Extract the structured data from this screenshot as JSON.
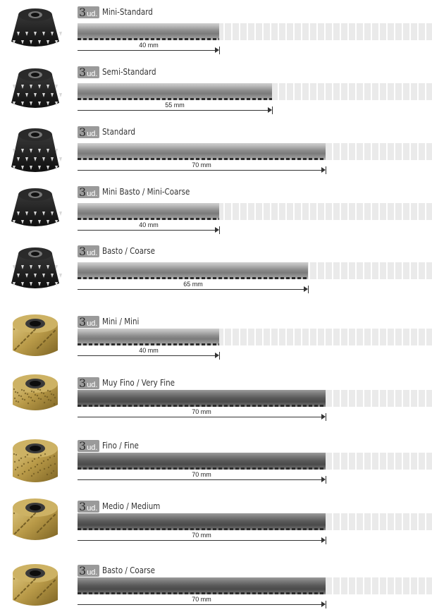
{
  "items": [
    {
      "id": "mini-standard",
      "qty": "3",
      "unit": "ud.",
      "name": "Mini-Standard",
      "length": "40 mm",
      "mm": 40,
      "finish": "black"
    },
    {
      "id": "semi-standard",
      "qty": "3",
      "unit": "ud.",
      "name": "Semi-Standard",
      "length": "55 mm",
      "mm": 55,
      "finish": "black"
    },
    {
      "id": "standard",
      "qty": "3",
      "unit": "ud.",
      "name": "Standard",
      "length": "70 mm",
      "mm": 70,
      "finish": "black"
    },
    {
      "id": "mini-basto",
      "qty": "3",
      "unit": "ud.",
      "name": "Mini Basto / Mini-Coarse",
      "length": "40 mm",
      "mm": 40,
      "finish": "black"
    },
    {
      "id": "basto-coarse-black",
      "qty": "3",
      "unit": "ud.",
      "name": "Basto / Coarse",
      "length": "65 mm",
      "mm": 65,
      "finish": "black"
    },
    {
      "id": "mini-mini",
      "qty": "3",
      "unit": "ud.",
      "name": "Mini / Mini",
      "length": "40 mm",
      "mm": 40,
      "finish": "gold"
    },
    {
      "id": "muy-fino",
      "qty": "3",
      "unit": "ud.",
      "name": "Muy Fino / Very Fine",
      "length": "70 mm",
      "mm": 70,
      "finish": "gold"
    },
    {
      "id": "fino",
      "qty": "3",
      "unit": "ud.",
      "name": "Fino / Fine",
      "length": "70 mm",
      "mm": 70,
      "finish": "gold"
    },
    {
      "id": "medio",
      "qty": "3",
      "unit": "ud.",
      "name": "Medio / Medium",
      "length": "70 mm",
      "mm": 70,
      "finish": "gold"
    },
    {
      "id": "basto-coarse-gold",
      "qty": "3",
      "unit": "ud.",
      "name": "Basto / Coarse",
      "length": "70 mm",
      "mm": 70,
      "finish": "gold"
    }
  ]
}
